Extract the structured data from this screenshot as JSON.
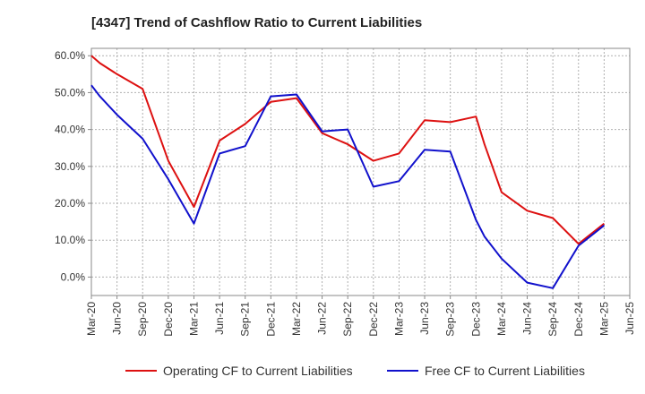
{
  "chart_data": {
    "type": "line",
    "title": "[4347]  Trend of Cashflow Ratio to Current Liabilities",
    "xlabel": "",
    "ylabel": "",
    "x_ticks": [
      "Mar-20",
      "Jun-20",
      "Sep-20",
      "Dec-20",
      "Mar-21",
      "Jun-21",
      "Sep-21",
      "Dec-21",
      "Mar-22",
      "Jun-22",
      "Sep-22",
      "Dec-22",
      "Mar-23",
      "Jun-23",
      "Sep-23",
      "Dec-23",
      "Mar-24",
      "Jun-24",
      "Sep-24",
      "Dec-24",
      "Mar-25",
      "Jun-25"
    ],
    "y_ticks": [
      "0.0%",
      "10.0%",
      "20.0%",
      "30.0%",
      "40.0%",
      "50.0%",
      "60.0%"
    ],
    "y_tick_values": [
      0,
      10,
      20,
      30,
      40,
      50,
      60
    ],
    "ylim": [
      -5,
      62
    ],
    "grid": true,
    "legend_position": "bottom",
    "series": [
      {
        "name": "Operating CF to Current Liabilities",
        "color": "#dd1111",
        "x": [
          "Mar-20",
          "Apr-20",
          "Jun-20",
          "Sep-20",
          "Dec-20",
          "Mar-21",
          "Jun-21",
          "Sep-21",
          "Dec-21",
          "Mar-22",
          "Jun-22",
          "Sep-22",
          "Dec-22",
          "Mar-23",
          "Jun-23",
          "Sep-23",
          "Dec-23",
          "Jan-24",
          "Mar-24",
          "Jun-24",
          "Sep-24",
          "Dec-24",
          "Mar-25"
        ],
        "values": [
          60.0,
          58.0,
          55.0,
          51.0,
          31.5,
          19.0,
          37.0,
          41.5,
          47.5,
          48.5,
          39.0,
          36.0,
          31.5,
          33.5,
          42.5,
          42.0,
          43.5,
          36.0,
          23.0,
          18.0,
          16.0,
          9.0,
          14.5
        ]
      },
      {
        "name": "Free CF to Current Liabilities",
        "color": "#1111cc",
        "x": [
          "Mar-20",
          "Apr-20",
          "Jun-20",
          "Sep-20",
          "Dec-20",
          "Mar-21",
          "Jun-21",
          "Sep-21",
          "Dec-21",
          "Mar-22",
          "Jun-22",
          "Sep-22",
          "Dec-22",
          "Mar-23",
          "Jun-23",
          "Sep-23",
          "Dec-23",
          "Jan-24",
          "Mar-24",
          "Jun-24",
          "Sep-24",
          "Dec-24",
          "Mar-25"
        ],
        "values": [
          52.0,
          49.0,
          44.0,
          37.5,
          26.5,
          14.5,
          33.5,
          35.5,
          49.0,
          49.5,
          39.5,
          40.0,
          24.5,
          26.0,
          34.5,
          34.0,
          15.5,
          11.0,
          5.0,
          -1.5,
          -3.0,
          8.5,
          14.0
        ]
      }
    ]
  }
}
